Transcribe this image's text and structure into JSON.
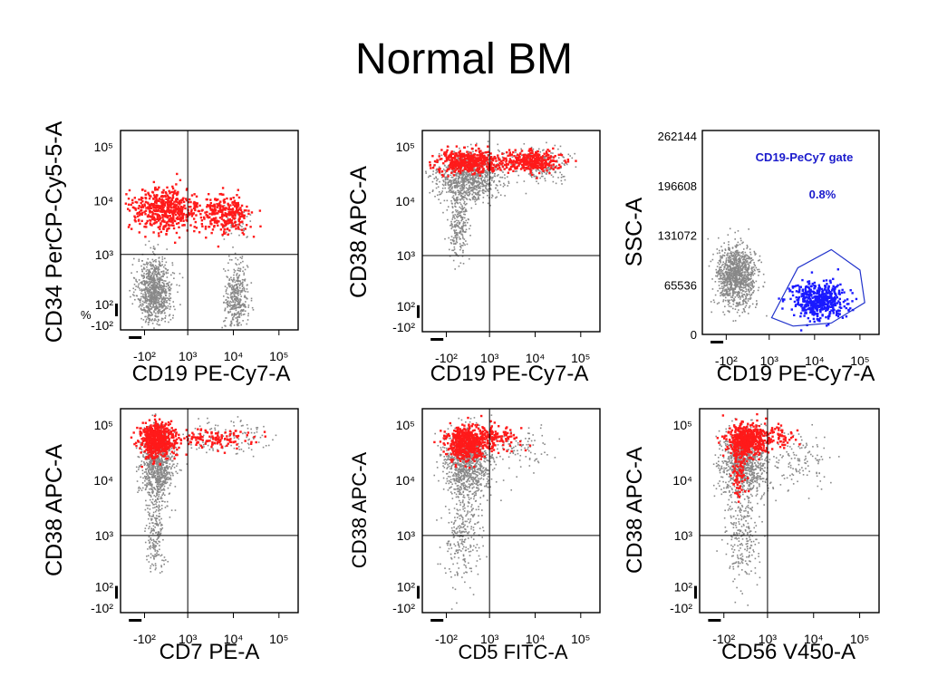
{
  "title": "Normal BM",
  "colors": {
    "population": "#888888",
    "highlight": "#ff1a1a",
    "gate": "#1a1aff",
    "gate_line": "#2233cc",
    "annotation": "#1a1acc"
  },
  "chart_data": [
    {
      "type": "scatter",
      "xlabel": "CD19 PE-Cy7-A",
      "ylabel": "CD34 PerCP-Cy5-5-A",
      "x_ticks": [
        "-10²",
        "10³",
        "10⁴",
        "10⁵"
      ],
      "y_ticks": [
        "10⁵",
        "10⁴",
        "10³",
        "10²",
        "-10²"
      ],
      "x_log_range": [
        1.6,
        5.3
      ],
      "y_log_range": [
        1.6,
        5.3
      ],
      "quadrant": {
        "x": 3.0,
        "y": 3.0
      },
      "stray_label": "%",
      "series": [
        {
          "color": "gray",
          "clusters": [
            {
              "cx": 2.3,
              "cy": 2.35,
              "sx": 0.18,
              "sy": 0.3,
              "n": 900
            },
            {
              "cx": 4.0,
              "cy": 2.2,
              "sx": 0.12,
              "sy": 0.32,
              "n": 380
            },
            {
              "cx": 4.0,
              "cy": 3.6,
              "sx": 0.15,
              "sy": 0.15,
              "n": 60
            }
          ]
        },
        {
          "color": "red",
          "clusters": [
            {
              "cx": 2.5,
              "cy": 3.85,
              "sx": 0.38,
              "sy": 0.2,
              "n": 520
            },
            {
              "cx": 3.75,
              "cy": 3.75,
              "sx": 0.28,
              "sy": 0.18,
              "n": 280
            }
          ]
        }
      ]
    },
    {
      "type": "scatter",
      "xlabel": "CD19 PE-Cy7-A",
      "ylabel": "CD38 APC-A",
      "x_ticks": [
        "-10²",
        "10³",
        "10⁴",
        "10⁵"
      ],
      "y_ticks": [
        "10⁵",
        "10⁴",
        "10³",
        "10²",
        "-10²"
      ],
      "x_log_range": [
        1.6,
        5.3
      ],
      "y_log_range": [
        1.6,
        5.3
      ],
      "quadrant": {
        "x": 3.0,
        "y": 3.0
      },
      "series": [
        {
          "color": "gray",
          "clusters": [
            {
              "cx": 2.55,
              "cy": 4.45,
              "sx": 0.32,
              "sy": 0.22,
              "n": 950
            },
            {
              "cx": 2.35,
              "cy": 3.6,
              "sx": 0.1,
              "sy": 0.3,
              "n": 250
            },
            {
              "cx": 4.1,
              "cy": 4.7,
              "sx": 0.3,
              "sy": 0.15,
              "n": 220
            }
          ]
        },
        {
          "color": "red",
          "clusters": [
            {
              "cx": 2.55,
              "cy": 4.75,
              "sx": 0.35,
              "sy": 0.1,
              "n": 450
            },
            {
              "cx": 3.85,
              "cy": 4.75,
              "sx": 0.3,
              "sy": 0.09,
              "n": 320
            }
          ]
        }
      ]
    },
    {
      "type": "scatter",
      "xlabel": "CD19 PE-Cy7-A",
      "ylabel": "SSC-A",
      "x_ticks": [
        "-10²",
        "10³",
        "10⁴",
        "10⁵"
      ],
      "y_ticks": [
        "262144",
        "196608",
        "131072",
        "65536",
        "0"
      ],
      "x_log_range": [
        1.6,
        5.3
      ],
      "y_range": [
        0,
        262144
      ],
      "gate_label": "CD19-PeCy7 gate",
      "gate_percent": "0.8%",
      "gate_polygon": [
        [
          3.05,
          22000
        ],
        [
          3.6,
          88000
        ],
        [
          4.3,
          112000
        ],
        [
          4.9,
          85000
        ],
        [
          5.0,
          42000
        ],
        [
          4.3,
          15000
        ],
        [
          3.5,
          11000
        ]
      ],
      "series": [
        {
          "color": "gray",
          "clusters": [
            {
              "cx": 2.3,
              "cy": 78000,
              "sx": 0.2,
              "sy": 20000,
              "n": 1100
            }
          ]
        },
        {
          "color": "blue",
          "clusters": [
            {
              "cx": 4.0,
              "cy": 45000,
              "sx": 0.28,
              "sy": 12000,
              "n": 500
            }
          ]
        }
      ]
    },
    {
      "type": "scatter",
      "xlabel": "CD7 PE-A",
      "ylabel": "CD38 APC-A",
      "x_ticks": [
        "-10²",
        "10³",
        "10⁴",
        "10⁵"
      ],
      "y_ticks": [
        "10⁵",
        "10⁴",
        "10³",
        "10²",
        "-10²"
      ],
      "x_log_range": [
        1.6,
        5.3
      ],
      "y_log_range": [
        1.6,
        5.3
      ],
      "quadrant": {
        "x": 3.0,
        "y": 3.0
      },
      "series": [
        {
          "color": "gray",
          "clusters": [
            {
              "cx": 2.35,
              "cy": 4.3,
              "sx": 0.17,
              "sy": 0.3,
              "n": 850
            },
            {
              "cx": 2.3,
              "cy": 3.1,
              "sx": 0.1,
              "sy": 0.35,
              "n": 200
            },
            {
              "cx": 3.8,
              "cy": 4.8,
              "sx": 0.45,
              "sy": 0.15,
              "n": 120
            }
          ]
        },
        {
          "color": "red",
          "clusters": [
            {
              "cx": 2.35,
              "cy": 4.75,
              "sx": 0.18,
              "sy": 0.15,
              "n": 550
            },
            {
              "cx": 3.5,
              "cy": 4.75,
              "sx": 0.45,
              "sy": 0.1,
              "n": 130
            }
          ]
        }
      ]
    },
    {
      "type": "scatter",
      "xlabel": "CD5 FITC-A",
      "ylabel": "CD38 APC-A",
      "x_ticks": [
        "-10²",
        "10³",
        "10⁴",
        "10⁵"
      ],
      "y_ticks": [
        "10⁵",
        "10⁴",
        "10³",
        "10²",
        "-10²"
      ],
      "x_log_range": [
        1.6,
        5.3
      ],
      "y_log_range": [
        1.6,
        5.3
      ],
      "quadrant": {
        "x": 3.0,
        "y": 3.0
      },
      "series": [
        {
          "color": "gray",
          "clusters": [
            {
              "cx": 2.5,
              "cy": 4.3,
              "sx": 0.25,
              "sy": 0.3,
              "n": 900
            },
            {
              "cx": 2.4,
              "cy": 3.0,
              "sx": 0.18,
              "sy": 0.45,
              "n": 250
            },
            {
              "cx": 3.6,
              "cy": 4.6,
              "sx": 0.35,
              "sy": 0.2,
              "n": 100
            }
          ]
        },
        {
          "color": "red",
          "clusters": [
            {
              "cx": 2.5,
              "cy": 4.7,
              "sx": 0.22,
              "sy": 0.16,
              "n": 550
            },
            {
              "cx": 3.1,
              "cy": 4.8,
              "sx": 0.25,
              "sy": 0.1,
              "n": 100
            }
          ]
        }
      ]
    },
    {
      "type": "scatter",
      "xlabel": "CD56 V450-A",
      "ylabel": "CD38 APC-A",
      "x_ticks": [
        "-10²",
        "10³",
        "10⁴",
        "10⁵"
      ],
      "y_ticks": [
        "10⁵",
        "10⁴",
        "10³",
        "10²",
        "-10²"
      ],
      "x_log_range": [
        1.6,
        5.3
      ],
      "y_log_range": [
        1.6,
        5.3
      ],
      "quadrant": {
        "x": 3.0,
        "y": 3.0
      },
      "series": [
        {
          "color": "gray",
          "clusters": [
            {
              "cx": 2.5,
              "cy": 4.3,
              "sx": 0.25,
              "sy": 0.3,
              "n": 900
            },
            {
              "cx": 2.45,
              "cy": 3.0,
              "sx": 0.18,
              "sy": 0.45,
              "n": 250
            },
            {
              "cx": 3.7,
              "cy": 4.4,
              "sx": 0.3,
              "sy": 0.3,
              "n": 120
            }
          ]
        },
        {
          "color": "red",
          "clusters": [
            {
              "cx": 2.55,
              "cy": 4.75,
              "sx": 0.2,
              "sy": 0.15,
              "n": 500
            },
            {
              "cx": 2.4,
              "cy": 4.1,
              "sx": 0.08,
              "sy": 0.25,
              "n": 80
            },
            {
              "cx": 3.2,
              "cy": 4.8,
              "sx": 0.2,
              "sy": 0.1,
              "n": 60
            }
          ]
        }
      ]
    }
  ]
}
